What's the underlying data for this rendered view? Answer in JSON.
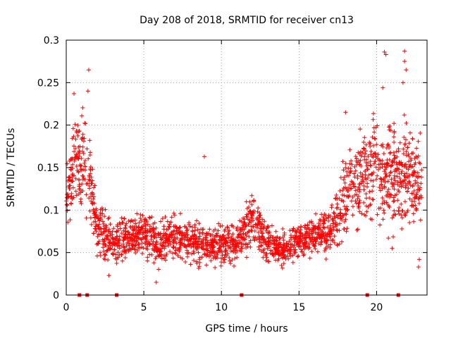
{
  "chart_data": {
    "type": "scatter",
    "title": "Day 208 of 2018, SRMTID for receiver cn13",
    "xlabel": "GPS time / hours",
    "ylabel": "SRMTID / TECUs",
    "xlim": [
      0,
      23.25
    ],
    "ylim": [
      0,
      0.3
    ],
    "grid": true,
    "marker": "+",
    "color": "#ff0000",
    "x_ticks": [
      0,
      5,
      10,
      15,
      20
    ],
    "y_ticks": [
      0,
      0.05,
      0.1,
      0.15,
      0.2,
      0.25,
      0.3
    ],
    "x_tick_labels": [
      "0",
      "5",
      "10",
      "15",
      "20"
    ],
    "y_tick_labels": [
      "0",
      "0.05",
      "0.1",
      "0.15",
      "0.2",
      "0.25",
      "0.3"
    ],
    "zero_markers_x": [
      0.85,
      1.35,
      3.25,
      11.3,
      19.4,
      21.4
    ],
    "trend": {
      "hours": [
        0,
        0.5,
        1,
        1.5,
        2,
        3,
        4,
        5,
        6,
        7,
        8,
        9,
        10,
        11,
        12,
        13,
        14,
        15,
        16,
        17,
        17.5,
        18,
        19,
        20,
        21,
        22,
        23
      ],
      "center": [
        0.11,
        0.15,
        0.16,
        0.14,
        0.08,
        0.06,
        0.07,
        0.07,
        0.06,
        0.07,
        0.06,
        0.06,
        0.06,
        0.06,
        0.09,
        0.06,
        0.055,
        0.065,
        0.07,
        0.075,
        0.09,
        0.12,
        0.14,
        0.15,
        0.14,
        0.14,
        0.13
      ],
      "spread": [
        0.03,
        0.05,
        0.05,
        0.05,
        0.03,
        0.025,
        0.025,
        0.025,
        0.025,
        0.025,
        0.025,
        0.025,
        0.025,
        0.025,
        0.03,
        0.02,
        0.02,
        0.02,
        0.02,
        0.025,
        0.035,
        0.05,
        0.05,
        0.06,
        0.06,
        0.06,
        0.05
      ]
    },
    "highlighted_points": [
      {
        "x": 1.45,
        "y": 0.265
      },
      {
        "x": 1.4,
        "y": 0.24
      },
      {
        "x": 0.5,
        "y": 0.237
      },
      {
        "x": 20.5,
        "y": 0.286
      },
      {
        "x": 20.6,
        "y": 0.283
      },
      {
        "x": 21.8,
        "y": 0.287
      },
      {
        "x": 21.8,
        "y": 0.275
      },
      {
        "x": 21.9,
        "y": 0.265
      },
      {
        "x": 21.7,
        "y": 0.25
      },
      {
        "x": 20.4,
        "y": 0.244
      },
      {
        "x": 22.7,
        "y": 0.033
      },
      {
        "x": 22.75,
        "y": 0.042
      },
      {
        "x": 21,
        "y": 0.055
      },
      {
        "x": 8.9,
        "y": 0.163
      },
      {
        "x": 5.8,
        "y": 0.015
      },
      {
        "x": 2.75,
        "y": 0.023
      },
      {
        "x": 18.0,
        "y": 0.215
      }
    ]
  }
}
